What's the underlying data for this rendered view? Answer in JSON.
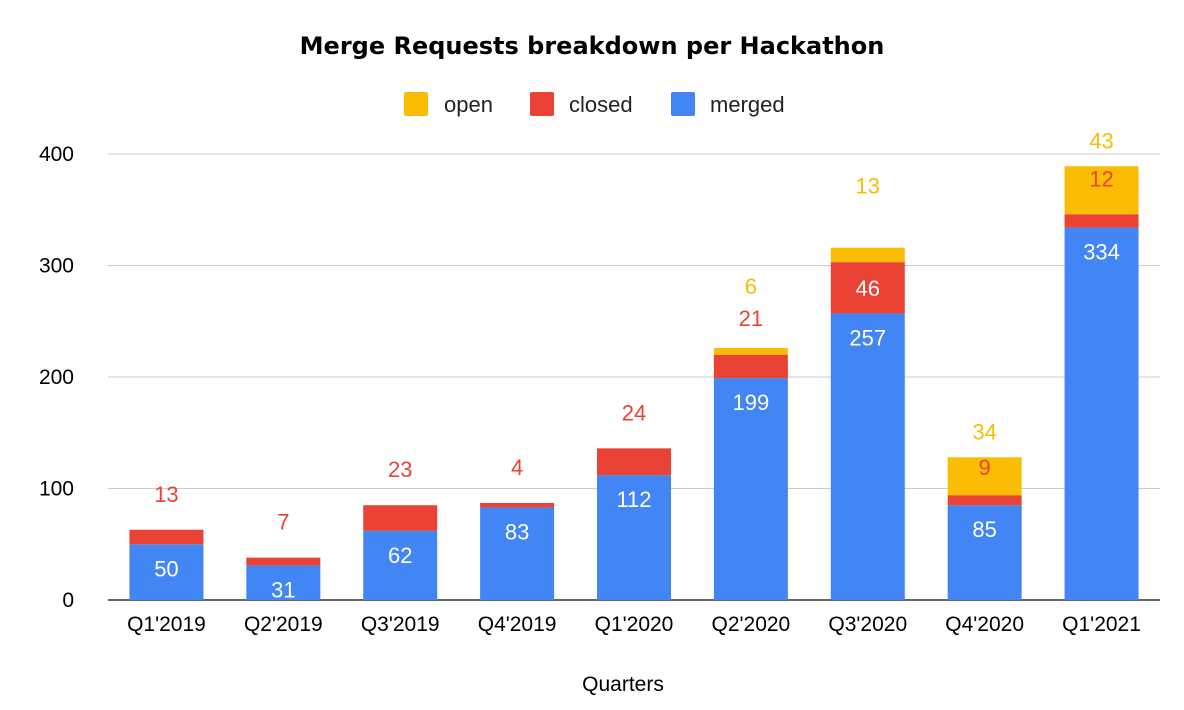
{
  "chart_data": {
    "type": "bar",
    "stacked": true,
    "title": "Merge Requests breakdown per Hackathon",
    "xlabel": "Quarters",
    "ylabel": "",
    "ylim": [
      0,
      400
    ],
    "yticks": [
      0,
      100,
      200,
      300,
      400
    ],
    "grid": true,
    "legend_position": "top-center",
    "categories": [
      "Q1'2019",
      "Q2'2019",
      "Q3'2019",
      "Q4'2019",
      "Q1'2020",
      "Q2'2020",
      "Q3'2020",
      "Q4'2020",
      "Q1'2021"
    ],
    "series": [
      {
        "name": "merged",
        "color": "#4285F4",
        "values": [
          50,
          31,
          62,
          83,
          112,
          199,
          257,
          85,
          334
        ],
        "label_color": "#ffffff",
        "label_position": "inside"
      },
      {
        "name": "closed",
        "color": "#EA4335",
        "values": [
          13,
          7,
          23,
          4,
          24,
          21,
          46,
          9,
          12
        ],
        "label_color": "#EA4335",
        "label_position": "above-or-inside"
      },
      {
        "name": "open",
        "color": "#FBBC04",
        "values": [
          0,
          0,
          0,
          0,
          0,
          6,
          13,
          34,
          43
        ],
        "label_color": "#FBBC04",
        "label_position": "above"
      }
    ],
    "legend_order": [
      "open",
      "closed",
      "merged"
    ]
  }
}
